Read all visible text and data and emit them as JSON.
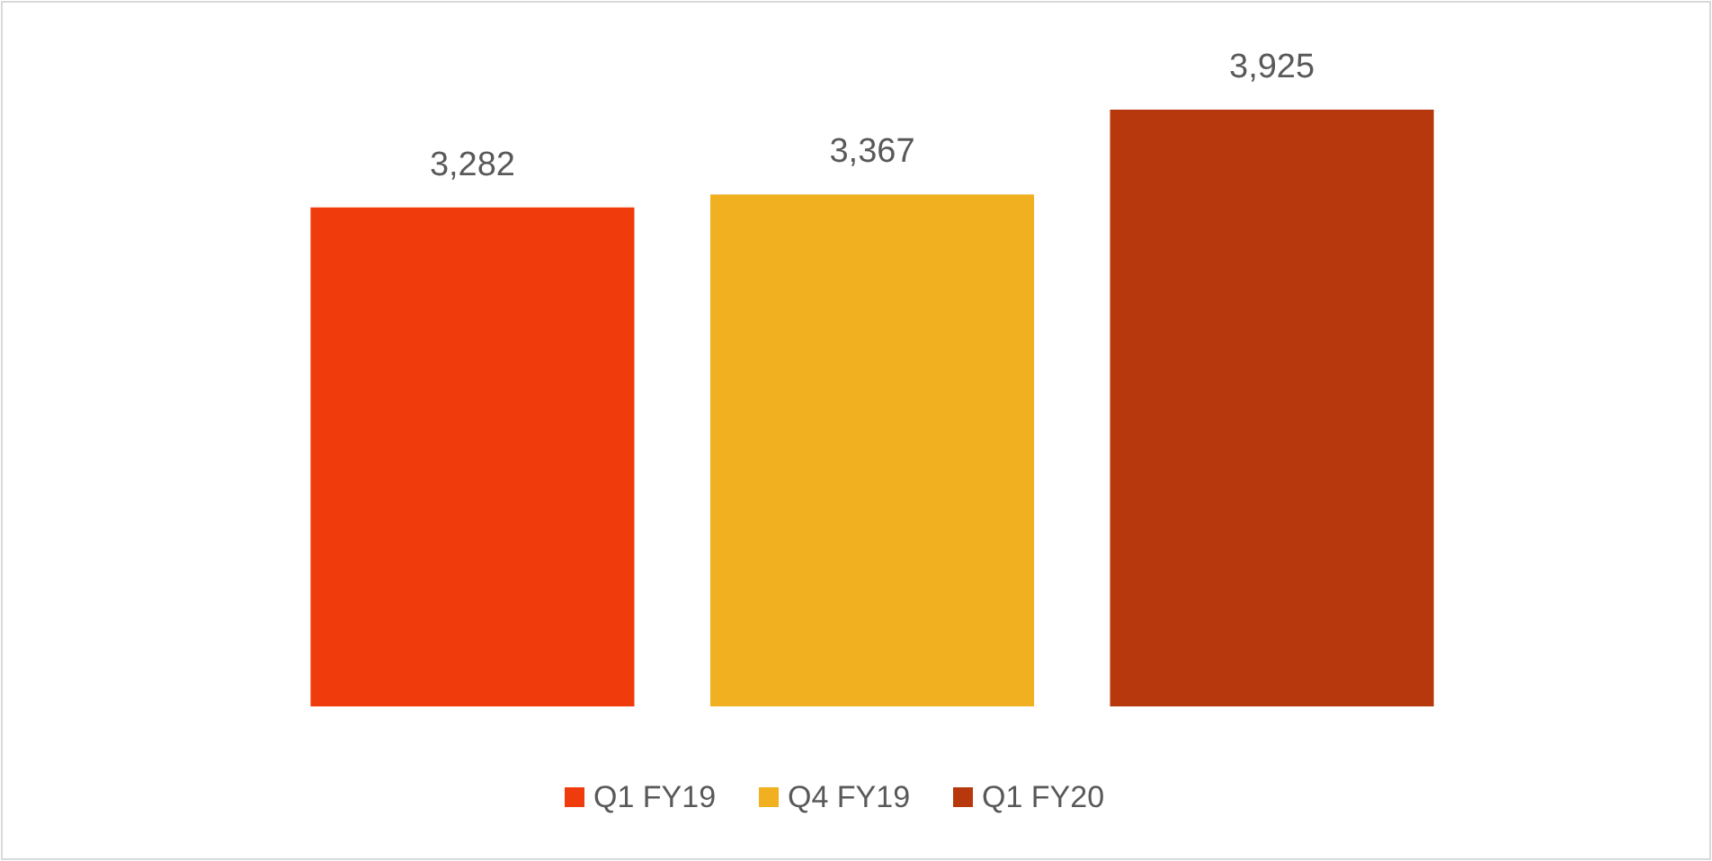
{
  "chart_data": {
    "type": "bar",
    "categories": [
      null
    ],
    "series": [
      {
        "name": "Q1 FY19",
        "color": "#f03c0c",
        "values": [
          3282
        ],
        "value_labels": [
          "3,282"
        ]
      },
      {
        "name": "Q4 FY19",
        "color": "#f0b020",
        "values": [
          3367
        ],
        "value_labels": [
          "3,367"
        ]
      },
      {
        "name": "Q1 FY20",
        "color": "#b8380e",
        "values": [
          3925
        ],
        "value_labels": [
          "3,925"
        ]
      }
    ],
    "legend": "bottom"
  }
}
